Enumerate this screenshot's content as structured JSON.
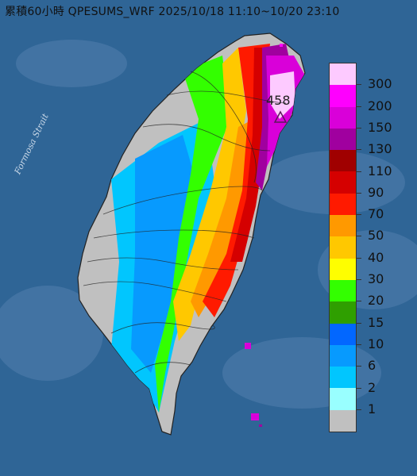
{
  "title": "累積60小時 QPESUMS_WRF 2025/10/18 11:10~10/20 23:10",
  "strait_label": "Formosa Strait",
  "peak_label": "458",
  "legend": {
    "labels": [
      "300",
      "200",
      "150",
      "130",
      "110",
      "90",
      "70",
      "50",
      "40",
      "30",
      "20",
      "15",
      "10",
      "6",
      "2",
      "1"
    ],
    "colors": [
      "#fdcaff",
      "#fe00fe",
      "#d900d9",
      "#a0009f",
      "#a00000",
      "#d50000",
      "#ff1a00",
      "#ff9900",
      "#ffc800",
      "#fefe00",
      "#33ff00",
      "#2f9f00",
      "#0267ff",
      "#079afe",
      "#01c6fe",
      "#99ffff",
      "#c0c0c0"
    ]
  },
  "colors": {
    "sea": "#2f6596",
    "land_dry": "#c0c0c0"
  }
}
